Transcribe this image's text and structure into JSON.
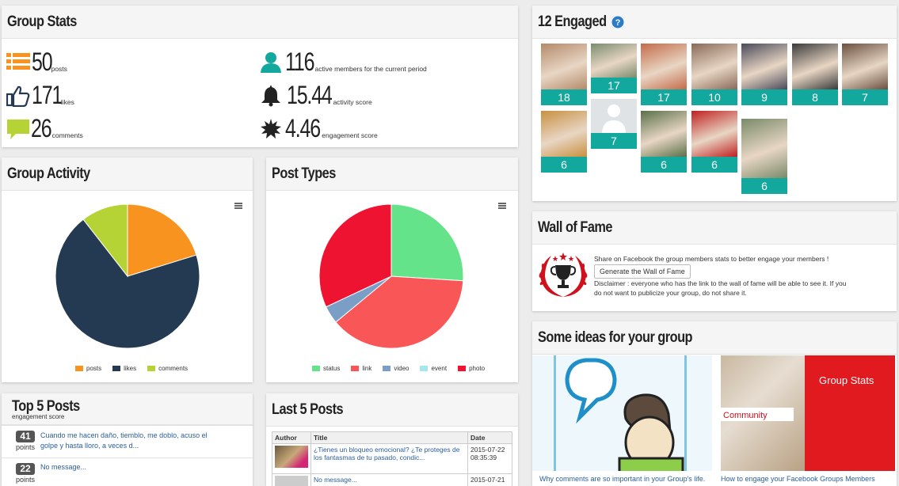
{
  "colors": {
    "accent_teal": "#13a89e",
    "orange": "#f7931e",
    "navy": "#233a52",
    "lime": "#b5d334",
    "status_green": "#65e38a",
    "link_red": "#f95757",
    "video_blue": "#7b9ec6",
    "event_cyan": "#a6e7ec",
    "photo_red": "#ee1330"
  },
  "group_stats": {
    "title": "Group Stats",
    "posts": {
      "value": "50",
      "label": "posts",
      "icon": "list-icon"
    },
    "likes": {
      "value": "171",
      "label": "likes",
      "icon": "thumbs-up-icon"
    },
    "comments": {
      "value": "26",
      "label": "comments",
      "icon": "comment-icon"
    },
    "members": {
      "value": "116",
      "label": "active members for the current period",
      "icon": "user-icon"
    },
    "activity": {
      "value": "15.44",
      "label": "activity score",
      "icon": "bell-icon"
    },
    "engagement": {
      "value": "4.46",
      "label": "engagement score",
      "icon": "starburst-icon"
    }
  },
  "engaged": {
    "title": "12 Engaged",
    "help_icon": "help-icon",
    "members": [
      {
        "count": "18"
      },
      {
        "count": "17"
      },
      {
        "count": "17"
      },
      {
        "count": "10"
      },
      {
        "count": "9"
      },
      {
        "count": "8"
      },
      {
        "count": "7"
      },
      {
        "count": "6"
      },
      {
        "count": "7"
      },
      {
        "count": "6"
      },
      {
        "count": "6"
      },
      {
        "count": "6"
      }
    ]
  },
  "group_activity": {
    "title": "Group Activity",
    "menu_icon": "hamburger-menu-icon"
  },
  "post_types": {
    "title": "Post Types",
    "menu_icon": "hamburger-menu-icon"
  },
  "chart_data": [
    {
      "type": "pie",
      "categories": [
        "posts",
        "likes",
        "comments"
      ],
      "values": [
        50,
        171,
        26
      ],
      "colors": [
        "#f7931e",
        "#233a52",
        "#b5d334"
      ],
      "legend": "bottom-center"
    },
    {
      "type": "pie",
      "categories": [
        "status",
        "link",
        "video",
        "event",
        "photo"
      ],
      "values": [
        13,
        19,
        2,
        0,
        16
      ],
      "colors": [
        "#65e38a",
        "#f95757",
        "#7b9ec6",
        "#a6e7ec",
        "#ee1330"
      ],
      "legend": "bottom-center"
    }
  ],
  "wall_of_fame": {
    "title": "Wall of Fame",
    "icon": "trophy-laurel-icon",
    "intro": "Share on Facebook the group members stats to better engage your members !",
    "button": "Generate the Wall of Fame",
    "disclaimer_line1": "Disclaimer : everyone who has the link to the wall of fame will be able to see it. If you",
    "disclaimer_line2": "do not want to publicize your group, do not share it."
  },
  "ideas": {
    "title": "Some ideas for your group",
    "items": [
      {
        "caption": "Why comments are so important in your Group's life."
      },
      {
        "caption": "How to engage your Facebook Groups Members",
        "image_title": "Group Stats",
        "image_tag": "Community"
      }
    ]
  },
  "top_posts": {
    "title": "Top 5 Posts",
    "subtitle": "engagement score",
    "rows": [
      {
        "points": "41",
        "points_label": "points",
        "line1": "Cuando me hacen daño, tiemblo, me doblo, acuso el",
        "line2": "golpe y hasta lloro, a veces d..."
      },
      {
        "points": "22",
        "points_label": "points",
        "line1": "No message...",
        "line2": ""
      }
    ]
  },
  "last_posts": {
    "title": "Last 5 Posts",
    "headers": [
      "Author",
      "Title",
      "Date"
    ],
    "rows": [
      {
        "title_line1": "¿Tienes un bloqueo emocional? ¿Te proteges de",
        "title_line2": "los fantasmas de tu pasado, condic...",
        "date_line1": "2015-07-22",
        "date_line2": "08:35:39"
      },
      {
        "title_line1": "No message...",
        "title_line2": "",
        "date_line1": "2015-07-21",
        "date_line2": ""
      }
    ]
  }
}
